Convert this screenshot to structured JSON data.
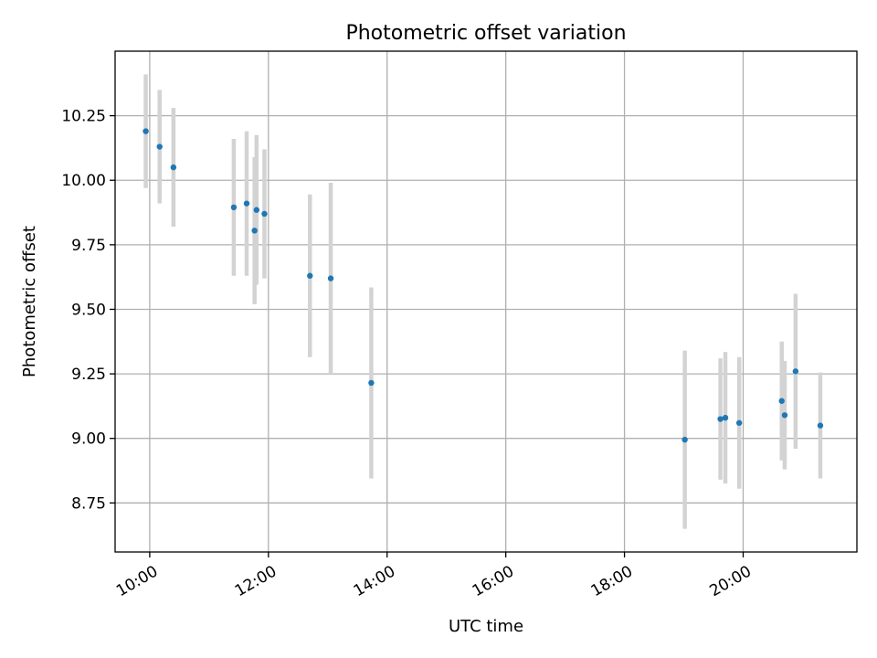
{
  "chart_data": {
    "type": "scatter",
    "title": "Photometric offset variation",
    "xlabel": "UTC time",
    "ylabel": "Photometric offset",
    "xlim": [
      "09:25",
      "21:55"
    ],
    "ylim": [
      8.56,
      10.5
    ],
    "x_ticks": [
      "10:00",
      "12:00",
      "14:00",
      "16:00",
      "18:00",
      "20:00"
    ],
    "y_ticks": [
      "8.75",
      "9.00",
      "9.25",
      "9.50",
      "9.75",
      "10.00",
      "10.25"
    ],
    "grid": true,
    "errorbar_color": "#d3d3d3",
    "marker_color": "#1f77b4",
    "points": [
      {
        "x": "09:56",
        "y": 10.19,
        "err": 0.22
      },
      {
        "x": "10:10",
        "y": 10.13,
        "err": 0.22
      },
      {
        "x": "10:24",
        "y": 10.05,
        "err": 0.23
      },
      {
        "x": "11:25",
        "y": 9.895,
        "err": 0.265
      },
      {
        "x": "11:38",
        "y": 9.91,
        "err": 0.28
      },
      {
        "x": "11:46",
        "y": 9.805,
        "err": 0.285
      },
      {
        "x": "11:48",
        "y": 9.885,
        "err": 0.29
      },
      {
        "x": "11:56",
        "y": 9.87,
        "err": 0.25
      },
      {
        "x": "12:42",
        "y": 9.63,
        "err": 0.315
      },
      {
        "x": "13:03",
        "y": 9.62,
        "err": 0.37
      },
      {
        "x": "13:44",
        "y": 9.215,
        "err": 0.37
      },
      {
        "x": "19:01",
        "y": 8.995,
        "err": 0.345
      },
      {
        "x": "19:37",
        "y": 9.075,
        "err": 0.235
      },
      {
        "x": "19:42",
        "y": 9.08,
        "err": 0.255
      },
      {
        "x": "19:56",
        "y": 9.06,
        "err": 0.255
      },
      {
        "x": "20:39",
        "y": 9.145,
        "err": 0.23
      },
      {
        "x": "20:42",
        "y": 9.09,
        "err": 0.21
      },
      {
        "x": "20:53",
        "y": 9.26,
        "err": 0.3
      },
      {
        "x": "21:18",
        "y": 9.05,
        "err": 0.205
      }
    ]
  }
}
